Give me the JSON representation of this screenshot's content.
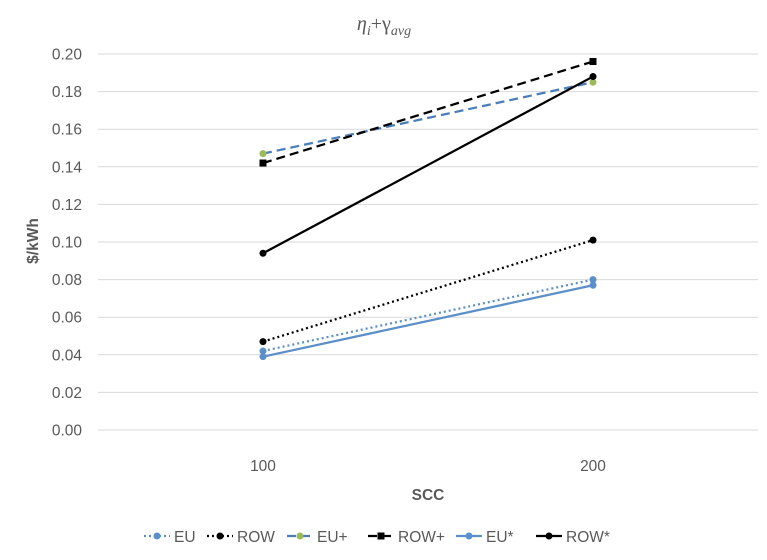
{
  "chart_data": {
    "type": "line",
    "title_parts": {
      "eta": "η",
      "eta_sub": "i",
      "plus": "+",
      "gamma": "γ",
      "gamma_sub": "avg"
    },
    "xlabel": "SCC",
    "ylabel": "$/kWh",
    "categories": [
      "100",
      "200"
    ],
    "ylim": [
      0,
      0.2
    ],
    "yticks": [
      "0.00",
      "0.02",
      "0.04",
      "0.06",
      "0.08",
      "0.10",
      "0.12",
      "0.14",
      "0.16",
      "0.18",
      "0.20"
    ],
    "ytick_values": [
      0,
      0.02,
      0.04,
      0.06,
      0.08,
      0.1,
      0.12,
      0.14,
      0.16,
      0.18,
      0.2
    ],
    "grid": true,
    "legend_position": "bottom",
    "series": [
      {
        "name": "EU",
        "values": [
          0.042,
          0.08
        ],
        "color": "#5b8fc9",
        "dash": "dotted",
        "marker": "circle"
      },
      {
        "name": "ROW",
        "values": [
          0.047,
          0.101
        ],
        "color": "#000000",
        "dash": "dotted",
        "marker": "circle"
      },
      {
        "name": "EU+",
        "values": [
          0.147,
          0.185
        ],
        "color": "#4a7ebb",
        "dash": "dashed",
        "marker": "circle",
        "marker_fill": "#9bbb59"
      },
      {
        "name": "ROW+",
        "values": [
          0.142,
          0.196
        ],
        "color": "#000000",
        "dash": "dashed",
        "marker": "square"
      },
      {
        "name": "EU*",
        "values": [
          0.039,
          0.077
        ],
        "color": "#5b8fc9",
        "dash": "solid",
        "marker": "circle"
      },
      {
        "name": "ROW*",
        "values": [
          0.094,
          0.188
        ],
        "color": "#000000",
        "dash": "solid",
        "marker": "circle"
      }
    ]
  }
}
